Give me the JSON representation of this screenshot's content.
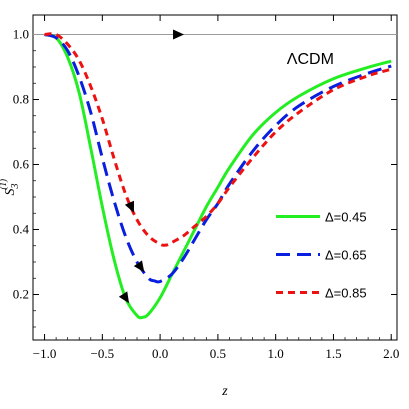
{
  "chart_data": {
    "type": "line",
    "xlabel": "z",
    "ylabel_main": "S",
    "ylabel_sub": "3",
    "ylabel_sup": "(1)",
    "xlim": [
      -1.1,
      2.05
    ],
    "ylim": [
      0.06,
      1.06
    ],
    "xticks": [
      -1.0,
      -0.5,
      0.0,
      0.5,
      1.0,
      1.5,
      2.0
    ],
    "xtick_labels": [
      "−1.0",
      "−0.5",
      "0.0",
      "0.5",
      "1.0",
      "1.5",
      "2.0"
    ],
    "yticks": [
      0.2,
      0.4,
      0.6,
      0.8,
      1.0
    ],
    "ytick_labels": [
      "0.2",
      "0.4",
      "0.6",
      "0.8",
      "1.0"
    ],
    "annotation": "ΛCDM",
    "legend_position": "bottom-right",
    "reference_line": {
      "y": 1.0,
      "color": "#9a9a9a",
      "arrow_x": 0.15
    },
    "series": [
      {
        "name": "Δ=0.45",
        "color": "#22ee22",
        "dash": "solid",
        "arrow_x": -0.3,
        "x": [
          -1.0,
          -0.9,
          -0.8,
          -0.7,
          -0.6,
          -0.5,
          -0.4,
          -0.3,
          -0.2,
          -0.15,
          -0.1,
          0.0,
          0.1,
          0.2,
          0.3,
          0.4,
          0.5,
          0.6,
          0.8,
          1.0,
          1.2,
          1.5,
          1.8,
          2.0
        ],
        "y": [
          1.0,
          0.99,
          0.93,
          0.82,
          0.65,
          0.47,
          0.31,
          0.19,
          0.135,
          0.13,
          0.14,
          0.19,
          0.26,
          0.33,
          0.4,
          0.47,
          0.53,
          0.59,
          0.69,
          0.76,
          0.81,
          0.864,
          0.899,
          0.918
        ]
      },
      {
        "name": "Δ=0.65",
        "color": "#0a1ee0",
        "dash": "long",
        "arrow_x": -0.17,
        "x": [
          -1.0,
          -0.9,
          -0.8,
          -0.7,
          -0.6,
          -0.5,
          -0.4,
          -0.3,
          -0.2,
          -0.1,
          -0.05,
          0.0,
          0.1,
          0.2,
          0.3,
          0.4,
          0.5,
          0.6,
          0.8,
          1.0,
          1.2,
          1.5,
          1.8,
          2.0
        ],
        "y": [
          1.0,
          0.99,
          0.95,
          0.87,
          0.76,
          0.62,
          0.49,
          0.38,
          0.3,
          0.25,
          0.242,
          0.24,
          0.262,
          0.31,
          0.37,
          0.43,
          0.48,
          0.54,
          0.64,
          0.72,
          0.78,
          0.84,
          0.881,
          0.903
        ]
      },
      {
        "name": "Δ=0.85",
        "color": "#ee1111",
        "dash": "short",
        "arrow_x": -0.25,
        "x": [
          -1.0,
          -0.9,
          -0.8,
          -0.7,
          -0.6,
          -0.5,
          -0.4,
          -0.3,
          -0.2,
          -0.1,
          0.0,
          0.05,
          0.1,
          0.2,
          0.3,
          0.4,
          0.5,
          0.6,
          0.8,
          1.0,
          1.2,
          1.5,
          1.8,
          2.0
        ],
        "y": [
          1.0,
          1.0,
          0.97,
          0.92,
          0.84,
          0.74,
          0.62,
          0.51,
          0.43,
          0.38,
          0.355,
          0.352,
          0.36,
          0.38,
          0.41,
          0.44,
          0.48,
          0.53,
          0.62,
          0.7,
          0.76,
          0.83,
          0.873,
          0.893
        ]
      }
    ]
  }
}
